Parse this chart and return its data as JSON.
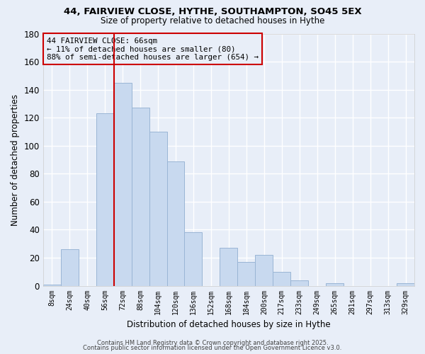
{
  "title": "44, FAIRVIEW CLOSE, HYTHE, SOUTHAMPTON, SO45 5EX",
  "subtitle": "Size of property relative to detached houses in Hythe",
  "xlabel": "Distribution of detached houses by size in Hythe",
  "ylabel": "Number of detached properties",
  "bar_labels": [
    "8sqm",
    "24sqm",
    "40sqm",
    "56sqm",
    "72sqm",
    "88sqm",
    "104sqm",
    "120sqm",
    "136sqm",
    "152sqm",
    "168sqm",
    "184sqm",
    "200sqm",
    "217sqm",
    "233sqm",
    "249sqm",
    "265sqm",
    "281sqm",
    "297sqm",
    "313sqm",
    "329sqm"
  ],
  "bar_values": [
    1,
    26,
    0,
    123,
    145,
    127,
    110,
    89,
    38,
    0,
    27,
    17,
    22,
    10,
    4,
    0,
    2,
    0,
    0,
    0,
    2
  ],
  "bar_color": "#c8d9ef",
  "bar_edgecolor": "#9ab5d5",
  "vline_color": "#cc0000",
  "vline_index": 3.5,
  "annotation_text": "44 FAIRVIEW CLOSE: 66sqm\n← 11% of detached houses are smaller (80)\n88% of semi-detached houses are larger (654) →",
  "annotation_box_edgecolor": "#cc0000",
  "ylim": [
    0,
    180
  ],
  "yticks": [
    0,
    20,
    40,
    60,
    80,
    100,
    120,
    140,
    160,
    180
  ],
  "footer1": "Contains HM Land Registry data © Crown copyright and database right 2025.",
  "footer2": "Contains public sector information licensed under the Open Government Licence v3.0.",
  "bg_color": "#e8eef8",
  "grid_color": "#ffffff"
}
